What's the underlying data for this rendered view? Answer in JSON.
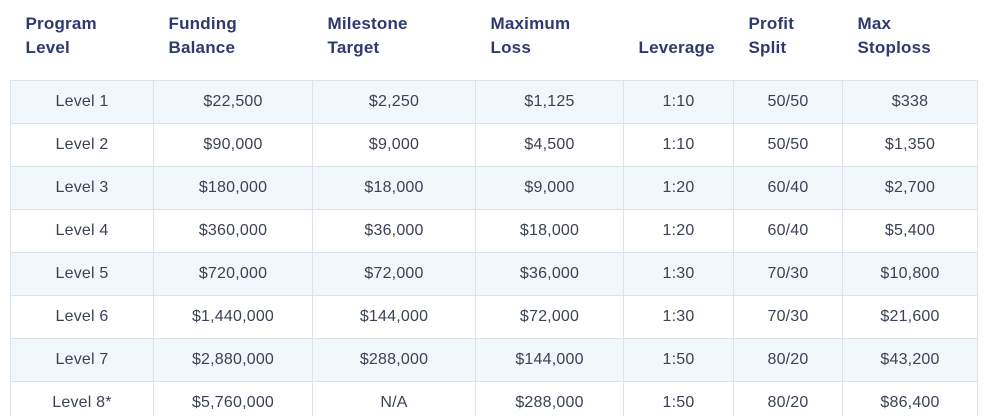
{
  "colors": {
    "header_text": "#2e3a6e",
    "cell_text": "#3b4254",
    "border": "#dfe3e9",
    "row_alt_background": "#f0f8fb",
    "row_background": "#ffffff",
    "page_background": "#ffffff"
  },
  "table": {
    "headers": [
      {
        "key": "program_level",
        "label": "Program\nLevel"
      },
      {
        "key": "funding_balance",
        "label": "Funding\nBalance"
      },
      {
        "key": "milestone_target",
        "label": "Milestone\nTarget"
      },
      {
        "key": "maximum_loss",
        "label": "Maximum\nLoss"
      },
      {
        "key": "leverage",
        "label": "Leverage"
      },
      {
        "key": "profit_split",
        "label": "Profit\nSplit"
      },
      {
        "key": "max_stoploss",
        "label": "Max\nStoploss"
      }
    ],
    "rows": [
      {
        "cells": [
          "Level 1",
          "$22,500",
          "$2,250",
          "$1,125",
          "1:10",
          "50/50",
          "$338"
        ]
      },
      {
        "cells": [
          "Level 2",
          "$90,000",
          "$9,000",
          "$4,500",
          "1:10",
          "50/50",
          "$1,350"
        ]
      },
      {
        "cells": [
          "Level 3",
          "$180,000",
          "$18,000",
          "$9,000",
          "1:20",
          "60/40",
          "$2,700"
        ]
      },
      {
        "cells": [
          "Level 4",
          "$360,000",
          "$36,000",
          "$18,000",
          "1:20",
          "60/40",
          "$5,400"
        ]
      },
      {
        "cells": [
          "Level 5",
          "$720,000",
          "$72,000",
          "$36,000",
          "1:30",
          "70/30",
          "$10,800"
        ]
      },
      {
        "cells": [
          "Level 6",
          "$1,440,000",
          "$144,000",
          "$72,000",
          "1:30",
          "70/30",
          "$21,600"
        ]
      },
      {
        "cells": [
          "Level 7",
          "$2,880,000",
          "$288,000",
          "$144,000",
          "1:50",
          "80/20",
          "$43,200"
        ]
      },
      {
        "cells": [
          "Level 8*",
          "$5,760,000",
          "N/A",
          "$288,000",
          "1:50",
          "80/20",
          "$86,400"
        ]
      }
    ]
  }
}
